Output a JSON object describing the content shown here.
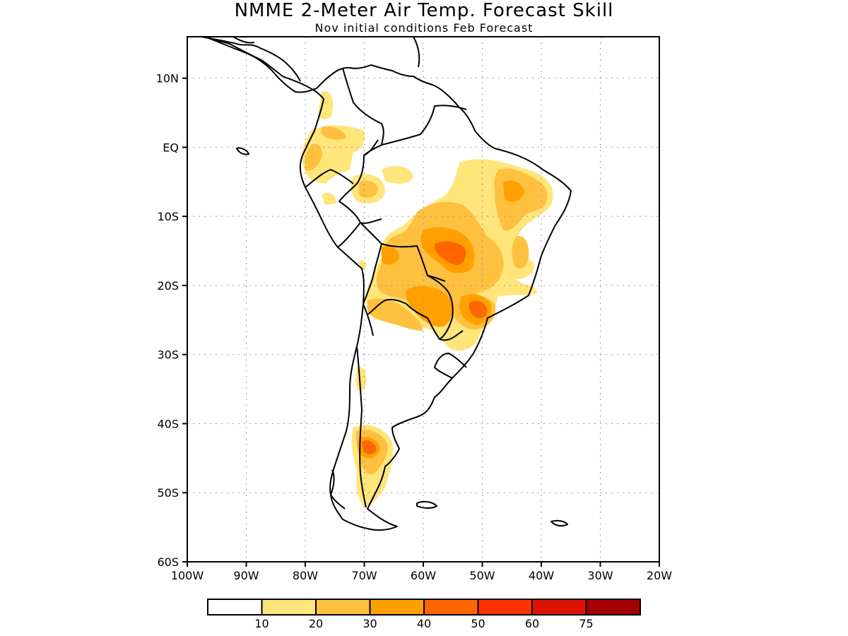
{
  "title": "NMME 2-Meter Air Temp. Forecast Skill",
  "subtitle": "Nov initial conditions  Feb Forecast",
  "map": {
    "region": "South America",
    "lon_range": [
      -100,
      -20
    ],
    "lat_range": [
      -60,
      16
    ],
    "grid": true,
    "lat_ticks": [
      {
        "value": 10,
        "label": "10N"
      },
      {
        "value": 0,
        "label": "EQ"
      },
      {
        "value": -10,
        "label": "10S"
      },
      {
        "value": -20,
        "label": "20S"
      },
      {
        "value": -30,
        "label": "30S"
      },
      {
        "value": -40,
        "label": "40S"
      },
      {
        "value": -50,
        "label": "50S"
      },
      {
        "value": -60,
        "label": "60S"
      }
    ],
    "lon_ticks": [
      {
        "value": -100,
        "label": "100W"
      },
      {
        "value": -90,
        "label": "90W"
      },
      {
        "value": -80,
        "label": "80W"
      },
      {
        "value": -70,
        "label": "70W"
      },
      {
        "value": -60,
        "label": "60W"
      },
      {
        "value": -50,
        "label": "50W"
      },
      {
        "value": -40,
        "label": "40W"
      },
      {
        "value": -30,
        "label": "30W"
      },
      {
        "value": -20,
        "label": "20W"
      }
    ]
  },
  "colorbar": {
    "colors": [
      "#ffffff",
      "#ffe57a",
      "#ffc040",
      "#ffa000",
      "#ff6600",
      "#ff3300",
      "#dd1100",
      "#a50000"
    ],
    "labels": [
      "10",
      "20",
      "30",
      "40",
      "50",
      "60",
      "75"
    ]
  }
}
